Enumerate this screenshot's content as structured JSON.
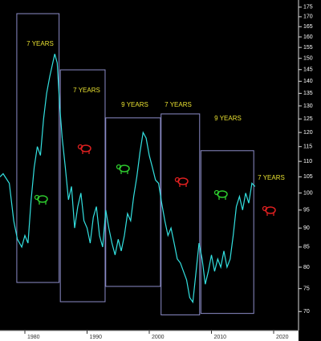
{
  "chart_data": {
    "type": "line",
    "x": [
      1976.0,
      1976.5,
      1977.5,
      1978.2,
      1978.8,
      1979.5,
      1980.0,
      1980.5,
      1981.0,
      1981.5,
      1982.0,
      1982.5,
      1983.0,
      1983.5,
      1984.0,
      1984.8,
      1985.2,
      1985.6,
      1986.0,
      1986.5,
      1987.0,
      1987.5,
      1988.0,
      1988.5,
      1989.0,
      1989.5,
      1990.0,
      1990.5,
      1991.0,
      1991.5,
      1992.0,
      1992.5,
      1993.0,
      1993.5,
      1994.0,
      1994.5,
      1995.0,
      1995.5,
      1996.0,
      1996.5,
      1997.0,
      1997.5,
      1998.0,
      1998.5,
      1999.0,
      1999.5,
      2000.0,
      2000.5,
      2001.0,
      2001.5,
      2002.0,
      2002.5,
      2003.0,
      2003.5,
      2004.0,
      2004.5,
      2005.0,
      2005.5,
      2006.0,
      2006.5,
      2007.0,
      2007.6,
      2008.0,
      2008.5,
      2009.0,
      2009.5,
      2010.0,
      2010.5,
      2011.0,
      2011.5,
      2012.0,
      2012.5,
      2013.0,
      2013.5,
      2014.0,
      2014.5,
      2015.0,
      2015.5,
      2016.0,
      2016.5,
      2017.0
    ],
    "series": [
      {
        "color": "#33e0e0",
        "values": [
          105,
          106,
          103,
          92,
          87,
          85,
          88,
          86,
          98,
          108,
          115,
          112,
          125,
          135,
          142,
          152,
          148,
          130,
          118,
          108,
          98,
          102,
          90,
          96,
          100,
          92,
          90,
          86,
          93,
          96,
          88,
          85,
          95,
          90,
          86,
          83,
          87,
          84,
          88,
          94,
          92,
          99,
          105,
          113,
          120,
          118,
          112,
          108,
          104,
          103,
          97,
          92,
          88,
          90,
          86,
          82,
          81,
          79,
          77,
          73,
          72,
          80,
          86,
          82,
          76,
          79,
          83,
          79,
          82,
          80,
          84,
          80,
          82,
          88,
          96,
          99,
          95,
          100,
          97,
          103,
          102
        ]
      }
    ],
    "periods": [
      {
        "label": "7 YEARS",
        "x": [
          1978.7,
          1985.5
        ],
        "y": [
          76.4,
          171.6
        ]
      },
      {
        "label": "7 YEARS",
        "x": [
          1985.7,
          1992.9
        ],
        "y": [
          72.1,
          144.9
        ]
      },
      {
        "label": "9 YEARS",
        "x": [
          1993.0,
          2001.8
        ],
        "y": [
          75.5,
          125.4
        ]
      },
      {
        "label": "7 YEARS",
        "x": [
          2001.9,
          2008.1
        ],
        "y": [
          69.3,
          126.9
        ]
      },
      {
        "label": "9 YEARS",
        "x": [
          2008.3,
          2016.8
        ],
        "y": [
          69.6,
          113.6
        ]
      },
      {
        "label": "7 YEARS"
      }
    ],
    "xlim": [
      1976,
      2024
    ],
    "xticks": [
      1980,
      1990,
      2000,
      2010,
      2020
    ],
    "ylim": [
      66.1,
      178.8
    ],
    "ylog": true,
    "yticks": [
      70,
      75,
      80,
      85,
      90,
      95,
      100,
      105,
      110,
      115,
      120,
      125,
      130,
      135,
      140,
      145,
      150,
      155,
      160,
      165,
      170,
      175
    ]
  }
}
